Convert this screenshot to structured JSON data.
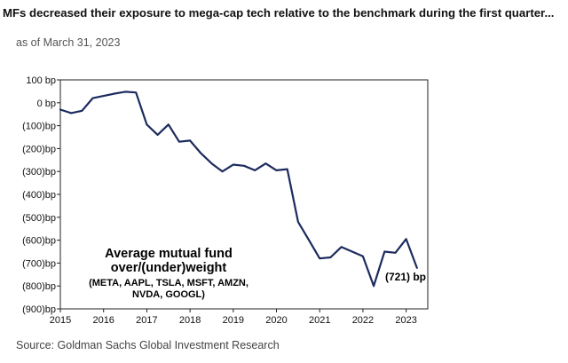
{
  "header": {
    "title": "MFs decreased their exposure to mega-cap tech relative to the benchmark during the first quarter...",
    "subtitle": "as of March 31, 2023"
  },
  "footer": {
    "source": "Source: Goldman Sachs Global Investment Research"
  },
  "chart_data": {
    "type": "line",
    "title": "MFs decreased their exposure to mega-cap tech relative to the benchmark during the first quarter...",
    "subtitle": "as of March 31, 2023",
    "xlabel": "",
    "ylabel": "",
    "xlim": [
      2015,
      2023.5
    ],
    "ylim": [
      -900,
      100
    ],
    "x_ticks": [
      2015,
      2016,
      2017,
      2018,
      2019,
      2020,
      2021,
      2022,
      2023
    ],
    "x_tick_labels": [
      "2015",
      "2016",
      "2017",
      "2018",
      "2019",
      "2020",
      "2021",
      "2022",
      "2023"
    ],
    "y_ticks": [
      100,
      0,
      -100,
      -200,
      -300,
      -400,
      -500,
      -600,
      -700,
      -800,
      -900
    ],
    "y_tick_labels": [
      "100 bp",
      "0 bp",
      "(100)bp",
      "(200)bp",
      "(300)bp",
      "(400)bp",
      "(500)bp",
      "(600)bp",
      "(700)bp",
      "(800)bp",
      "(900)bp"
    ],
    "series": [
      {
        "name": "Average mutual fund over/(under)weight",
        "color": "#1c2b5e",
        "x": [
          2015.0,
          2015.25,
          2015.5,
          2015.75,
          2016.0,
          2016.25,
          2016.5,
          2016.75,
          2017.0,
          2017.25,
          2017.5,
          2017.75,
          2018.0,
          2018.25,
          2018.5,
          2018.75,
          2019.0,
          2019.25,
          2019.5,
          2019.75,
          2020.0,
          2020.25,
          2020.5,
          2020.75,
          2021.0,
          2021.25,
          2021.5,
          2021.75,
          2022.0,
          2022.25,
          2022.5,
          2022.75,
          2023.0,
          2023.25
        ],
        "values": [
          -30,
          -45,
          -35,
          20,
          30,
          40,
          48,
          45,
          -95,
          -140,
          -95,
          -170,
          -165,
          -220,
          -265,
          -300,
          -270,
          -275,
          -295,
          -265,
          -295,
          -290,
          -520,
          -600,
          -680,
          -675,
          -630,
          -650,
          -670,
          -800,
          -650,
          -655,
          -595,
          -721
        ]
      }
    ],
    "annotations": [
      {
        "lines": [
          "Average mutual fund",
          "over/(under)weight"
        ],
        "style": "large-bold"
      },
      {
        "lines": [
          "(META, AAPL, TSLA, MSFT, AMZN,",
          "NVDA, GOOGL)"
        ],
        "style": "small-bold"
      },
      {
        "text": "(721)  bp",
        "style": "end-label"
      }
    ],
    "grid": false,
    "legend": "none"
  }
}
